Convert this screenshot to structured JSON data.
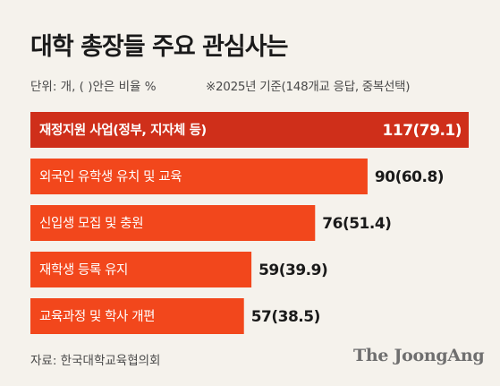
{
  "title": "대학 총장들 주요 관심사는",
  "unit_note": "단위: 개, ( )안은 비율 %",
  "basis_note": "※2025년 기준(148개교 응답, 중복선택)",
  "source": "자료: 한국대학교육협의회",
  "brand": "The JoongAng",
  "colors": {
    "background": "#f5f2ec",
    "top_bar": "#cf2f1a",
    "bar": "#f2471c",
    "bar_text": "#ffffff",
    "value_text_dark": "#1a1a1a"
  },
  "chart_data": {
    "type": "bar",
    "orientation": "horizontal",
    "categories": [
      "재정지원 사업(정부, 지자체 등)",
      "외국인 유학생 유치 및 교육",
      "신입생 모집 및 충원",
      "재학생 등록 유지",
      "교육과정 및 학사 개편"
    ],
    "values": [
      117,
      90,
      76,
      59,
      57
    ],
    "percentages": [
      79.1,
      60.8,
      51.4,
      39.9,
      38.5
    ],
    "value_labels": [
      "117(79.1)",
      "90(60.8)",
      "76(51.4)",
      "59(39.9)",
      "57(38.5)"
    ],
    "xlim": [
      0,
      117
    ],
    "grid": false,
    "legend": "none"
  }
}
